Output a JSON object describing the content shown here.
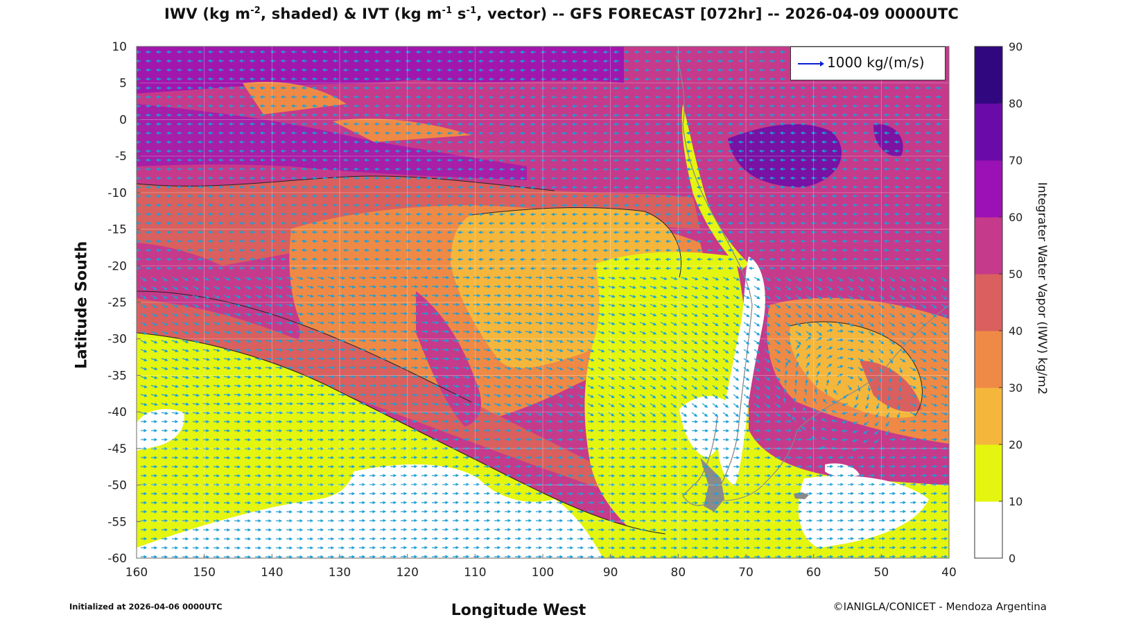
{
  "title": {
    "part1": "IWV (kg m",
    "exp1": "-2",
    "part2": ", shaded) & IVT (kg m",
    "exp2": "-1",
    "part3": " s",
    "exp3": "-1",
    "part4": ", vector) -- GFS FORECAST [072hr] -- 2026-04-09 0000UTC"
  },
  "axes": {
    "xlabel": "Longitude West",
    "ylabel": "Latitude South",
    "x_ticks": [
      "160",
      "150",
      "140",
      "130",
      "120",
      "110",
      "100",
      "90",
      "80",
      "70",
      "60",
      "50",
      "40"
    ],
    "y_ticks": [
      "10",
      "5",
      "0",
      "-5",
      "-10",
      "-15",
      "-20",
      "-25",
      "-30",
      "-35",
      "-40",
      "-45",
      "-50",
      "-55",
      "-60"
    ]
  },
  "colorbar": {
    "label": "Integrater Water Vapor (IWV) kg/m2",
    "ticks": [
      "0",
      "10",
      "20",
      "30",
      "40",
      "50",
      "60",
      "70",
      "80",
      "90"
    ],
    "colors": [
      "#ffffff",
      "#e4f50f",
      "#f5b63c",
      "#ee8a46",
      "#d9605e",
      "#c63a8b",
      "#9a12b3",
      "#6a0aa8",
      "#30077f"
    ]
  },
  "legend": {
    "label": "1000 kg/(m/s)",
    "arrow_color": "#0a1fcf"
  },
  "footer": {
    "initialized": "Initialized at 2026-04-06 0000UTC",
    "credit": "©IANIGLA/CONICET - Mendoza Argentina"
  },
  "map": {
    "lon_range": [
      160,
      40
    ],
    "lat_range": [
      10,
      -60
    ],
    "vector_color": "#1e9fd6",
    "landmass_color": "#8a8a8a"
  }
}
